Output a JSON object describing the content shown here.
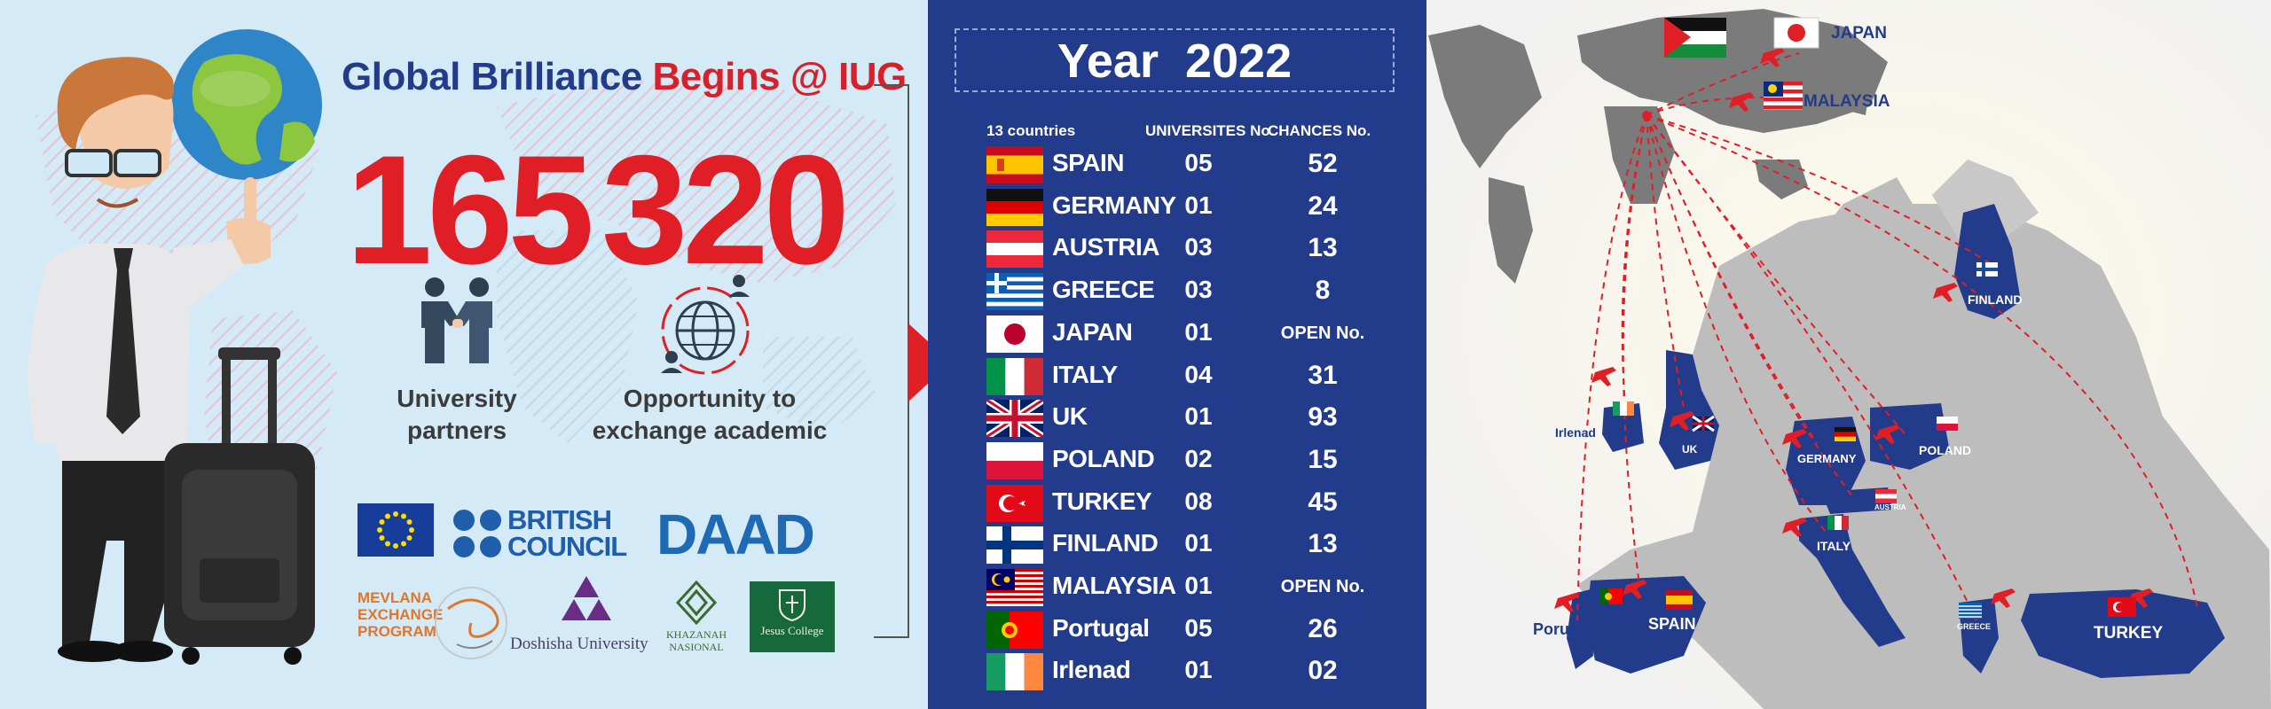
{
  "left": {
    "headline_part1": "Global Brilliance",
    "headline_part2": "Begins @ IUG",
    "stat1_value": "165",
    "stat1_label_line1": "University",
    "stat1_label_line2": "partners",
    "stat2_value": "320",
    "stat2_label_line1": "Opportunity to",
    "stat2_label_line2": "exchange academic",
    "logos": {
      "british_council_line1": "BRITISH",
      "british_council_line2": "COUNCIL",
      "daad": "DAAD",
      "mevlana_line1": "MEVLANA",
      "mevlana_line2": "EXCHANGE",
      "mevlana_line3": "PROGRAM",
      "doshisha": "Doshisha University",
      "khazanah_line1": "KHAZANAH",
      "khazanah_line2": "NASIONAL",
      "jesus": "Jesus College"
    }
  },
  "table": {
    "year_title": "Year  2022",
    "header_countries": "13 countries",
    "header_universities": "UNIVERSITES No.",
    "header_chances": "CHANCES No.",
    "rows": [
      {
        "country": "SPAIN",
        "universities": "05",
        "chances": "52",
        "flag": "spain"
      },
      {
        "country": "GERMANY",
        "universities": "01",
        "chances": "24",
        "flag": "germany"
      },
      {
        "country": "AUSTRIA",
        "universities": "03",
        "chances": "13",
        "flag": "austria"
      },
      {
        "country": "GREECE",
        "universities": "03",
        "chances": "8",
        "flag": "greece"
      },
      {
        "country": "JAPAN",
        "universities": "01",
        "chances": "OPEN No.",
        "flag": "japan"
      },
      {
        "country": "ITALY",
        "universities": "04",
        "chances": "31",
        "flag": "italy"
      },
      {
        "country": "UK",
        "universities": "01",
        "chances": "93",
        "flag": "uk"
      },
      {
        "country": "POLAND",
        "universities": "02",
        "chances": "15",
        "flag": "poland"
      },
      {
        "country": "TURKEY",
        "universities": "08",
        "chances": "45",
        "flag": "turkey"
      },
      {
        "country": "FINLAND",
        "universities": "01",
        "chances": "13",
        "flag": "finland"
      },
      {
        "country": "MALAYSIA",
        "universities": "01",
        "chances": "OPEN No.",
        "flag": "malaysia"
      },
      {
        "country": "Portugal",
        "universities": "05",
        "chances": "26",
        "flag": "portugal"
      },
      {
        "country": "Irlenad",
        "universities": "01",
        "chances": "02",
        "flag": "ireland"
      }
    ]
  },
  "map": {
    "labels": {
      "japan": "JAPAN",
      "malaysia": "MALAYSIA",
      "finland": "FINLAND",
      "irlenad": "Irlenad",
      "uk": "UK",
      "germany": "GERMANY",
      "poland": "POLAND",
      "austria": "AUSTRIA",
      "italy": "ITALY",
      "porugal": "Porugal",
      "spain": "SPAIN",
      "greece": "GREECE",
      "turkey": "TURKEY"
    }
  },
  "colors": {
    "navy": "#233b8b",
    "red": "#e01e26",
    "light_blue_bg": "#d4eaf6",
    "map_grey": "#8a8a8a"
  }
}
